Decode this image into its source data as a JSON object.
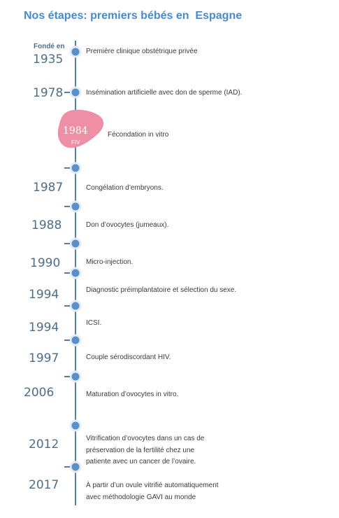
{
  "title": "Nos étapes: premiers bébés en  Espagne",
  "founded_label": "Fondé en",
  "highlight": {
    "year": "1984",
    "sub": "FIV",
    "color": "#ee8fa6"
  },
  "events": [
    {
      "year": "1935",
      "text": "Première clinique obstétrique privée"
    },
    {
      "year": "1978",
      "text": "Insémination artificielle avec don de sperme (IAD)."
    },
    {
      "year": "1984",
      "text": "Fécondation in vitro"
    },
    {
      "year": "1987",
      "text": "Congélation d’embryons."
    },
    {
      "year": "1988",
      "text": "Don d’ovocytes (jumeaux)."
    },
    {
      "year": "1990",
      "text": "Micro-injection."
    },
    {
      "year": "1994",
      "text": "Diagnostic préimplantatoire et sélection du sexe."
    },
    {
      "year": "1994",
      "text": "ICSI."
    },
    {
      "year": "1997",
      "text": "Couple  sérodiscordant  HIV."
    },
    {
      "year": "2006",
      "text": "Maturation d’ovocytes in vitro."
    },
    {
      "year": "2012",
      "lines": [
        "Vitrification d’ovocytes dans un cas de",
        "préservation de la fertilité chez une",
        "patiente avec un cancer de l’ovaire."
      ]
    },
    {
      "year": "2017",
      "lines": [
        "À partir d’un ovule vitrifié automatiquement",
        "avec  méthodologie GAVI au monde"
      ]
    }
  ]
}
